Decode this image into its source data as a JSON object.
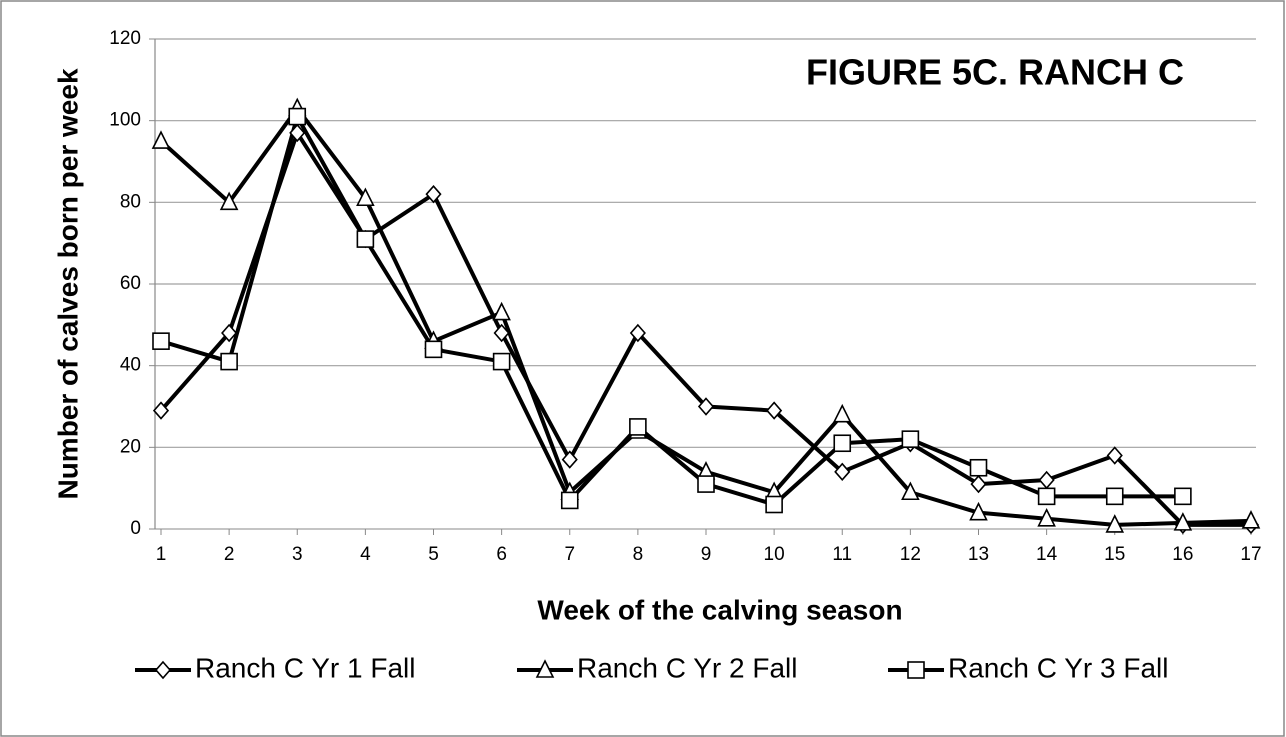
{
  "chart_data": {
    "type": "line",
    "title": "FIGURE 5C. RANCH C",
    "x_label": "Week of the calving season",
    "y_label": "Number of calves born per week",
    "categories": [
      "1",
      "2",
      "3",
      "4",
      "5",
      "6",
      "7",
      "8",
      "9",
      "10",
      "11",
      "12",
      "13",
      "14",
      "15",
      "16",
      "17"
    ],
    "series": [
      {
        "name": "Ranch C Yr 1 Fall",
        "color": "#000000",
        "marker": "diamond",
        "values": [
          29,
          48,
          97,
          71,
          82,
          48,
          17,
          48,
          30,
          29,
          14,
          21,
          11,
          12,
          18,
          1,
          1
        ]
      },
      {
        "name": "Ranch C Yr 2 Fall",
        "color": "#000000",
        "marker": "triangle",
        "values": [
          95,
          80,
          103,
          81,
          46,
          53,
          9,
          24,
          14,
          9,
          28,
          9,
          4,
          2.5,
          1,
          1.5,
          2
        ]
      },
      {
        "name": "Ranch C Yr 3 Fall",
        "color": "#000000",
        "marker": "square",
        "values": [
          46,
          41,
          101,
          71,
          44,
          41,
          7,
          25,
          11,
          6,
          21,
          22,
          15,
          8,
          8,
          8,
          null
        ]
      }
    ],
    "ylim": [
      0,
      120
    ],
    "yticks": [
      0,
      20,
      40,
      60,
      80,
      100,
      120
    ],
    "grid": true,
    "legend": "bottom"
  }
}
